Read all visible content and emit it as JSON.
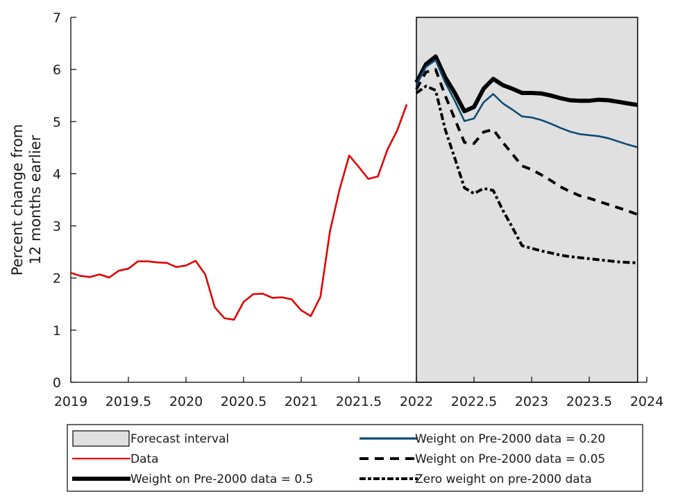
{
  "chart_data": {
    "type": "line",
    "title": "",
    "xlabel": "",
    "ylabel_lines": [
      "Percent change from",
      "12 months earlier"
    ],
    "xlim": [
      2019,
      2024
    ],
    "ylim": [
      0,
      7
    ],
    "xticks": [
      2019,
      2019.5,
      2020,
      2020.5,
      2021,
      2021.5,
      2022,
      2022.5,
      2023,
      2023.5,
      2024
    ],
    "xtick_labels": [
      "2019",
      "2019.5",
      "2020",
      "2020.5",
      "2021",
      "2021.5",
      "2022",
      "2022.5",
      "2023",
      "2023.5",
      "2024"
    ],
    "yticks": [
      0,
      1,
      2,
      3,
      4,
      5,
      6,
      7
    ],
    "ytick_labels": [
      "0",
      "1",
      "2",
      "3",
      "4",
      "5",
      "6",
      "7"
    ],
    "grid": false,
    "legend_position": "bottom",
    "forecast_interval": {
      "x_start": 2022.0,
      "x_end": 2023.92,
      "label": "Forecast interval",
      "color": "#e0e0e0"
    },
    "series": [
      {
        "name": "Data",
        "legend_label": "Data",
        "color": "#e00000",
        "style": "solid",
        "x_start": 2019.0,
        "step": 0.08333,
        "values": [
          2.1,
          2.04,
          2.02,
          2.07,
          2.01,
          2.14,
          2.18,
          2.32,
          2.32,
          2.3,
          2.29,
          2.21,
          2.24,
          2.33,
          2.07,
          1.44,
          1.23,
          1.2,
          1.54,
          1.69,
          1.7,
          1.62,
          1.63,
          1.59,
          1.38,
          1.27,
          1.64,
          2.9,
          3.7,
          4.35,
          4.13,
          3.9,
          3.95,
          4.47,
          4.83,
          5.33
        ]
      },
      {
        "name": "Weight on Pre-2000 data = 0.5",
        "legend_label": "Weight on Pre-2000 data = 0.5",
        "color": "#000000",
        "style": "thick",
        "x_start": 2022.0,
        "step": 0.08333,
        "values": [
          5.75,
          6.1,
          6.25,
          5.85,
          5.55,
          5.2,
          5.28,
          5.63,
          5.82,
          5.7,
          5.63,
          5.55,
          5.55,
          5.54,
          5.5,
          5.45,
          5.41,
          5.4,
          5.4,
          5.42,
          5.41,
          5.38,
          5.35,
          5.32
        ]
      },
      {
        "name": "Weight on Pre-2000 data = 0.20",
        "legend_label": "Weight on Pre-2000 data = 0.20",
        "color": "#0c4a74",
        "style": "solid",
        "x_start": 2022.0,
        "step": 0.08333,
        "values": [
          5.7,
          6.05,
          6.18,
          5.75,
          5.4,
          5.01,
          5.06,
          5.37,
          5.53,
          5.35,
          5.23,
          5.1,
          5.08,
          5.03,
          4.96,
          4.88,
          4.81,
          4.76,
          4.74,
          4.72,
          4.68,
          4.62,
          4.56,
          4.51
        ]
      },
      {
        "name": "Weight on Pre-2000 data = 0.05",
        "legend_label": "Weight on Pre-2000 data = 0.05",
        "color": "#000000",
        "style": "dashed",
        "x_start": 2022.0,
        "step": 0.08333,
        "values": [
          5.62,
          5.95,
          6.0,
          5.5,
          5.05,
          4.6,
          4.58,
          4.8,
          4.85,
          4.6,
          4.38,
          4.15,
          4.08,
          3.98,
          3.87,
          3.75,
          3.66,
          3.58,
          3.53,
          3.47,
          3.41,
          3.35,
          3.29,
          3.22
        ]
      },
      {
        "name": "Zero weight on pre-2000 data",
        "legend_label": "Zero weight on pre-2000 data",
        "color": "#000000",
        "style": "dashdot",
        "x_start": 2022.0,
        "step": 0.08333,
        "values": [
          5.55,
          5.68,
          5.6,
          4.85,
          4.3,
          3.73,
          3.62,
          3.72,
          3.68,
          3.3,
          2.97,
          2.62,
          2.57,
          2.52,
          2.48,
          2.44,
          2.41,
          2.39,
          2.37,
          2.35,
          2.33,
          2.31,
          2.3,
          2.29
        ]
      }
    ]
  },
  "legend": {
    "items": [
      {
        "label": "Forecast interval",
        "kind": "patch"
      },
      {
        "label": "Weight on Pre-2000 data = 0.20",
        "kind": "blue"
      },
      {
        "label": "Data",
        "kind": "red"
      },
      {
        "label": "Weight on Pre-2000 data = 0.05",
        "kind": "dashed"
      },
      {
        "label": "Weight on Pre-2000 data = 0.5",
        "kind": "thick"
      },
      {
        "label": "Zero weight on pre-2000 data",
        "kind": "dashdot"
      }
    ]
  }
}
